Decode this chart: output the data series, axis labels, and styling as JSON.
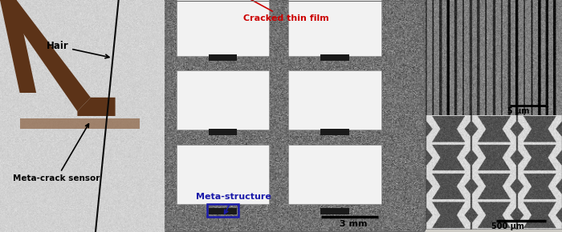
{
  "fig_width": 7.0,
  "fig_height": 2.9,
  "dpi": 100,
  "left_panel": {
    "bg_color": "#d4d2cc",
    "sensor_color": "#5c3318",
    "hair_color": "#111111",
    "label_hair": "Hair",
    "label_sensor": "Meta-crack sensor"
  },
  "middle_panel": {
    "bg_color": "#c2bfb8",
    "cell_color": "#f0f0f0",
    "border_texture_color": "#a0a0a0",
    "label_cracked": "Cracked thin film",
    "label_meta": "Meta-structure",
    "label_cracked_color": "#cc0000",
    "label_meta_color": "#1a1aaa",
    "scalebar_label": "3 mm"
  },
  "top_right_panel": {
    "border_color": "#cc0000",
    "scalebar_label": "5 μm"
  },
  "bottom_right_panel": {
    "border_color": "#1a1aaa",
    "scalebar_label": "500 μm"
  }
}
